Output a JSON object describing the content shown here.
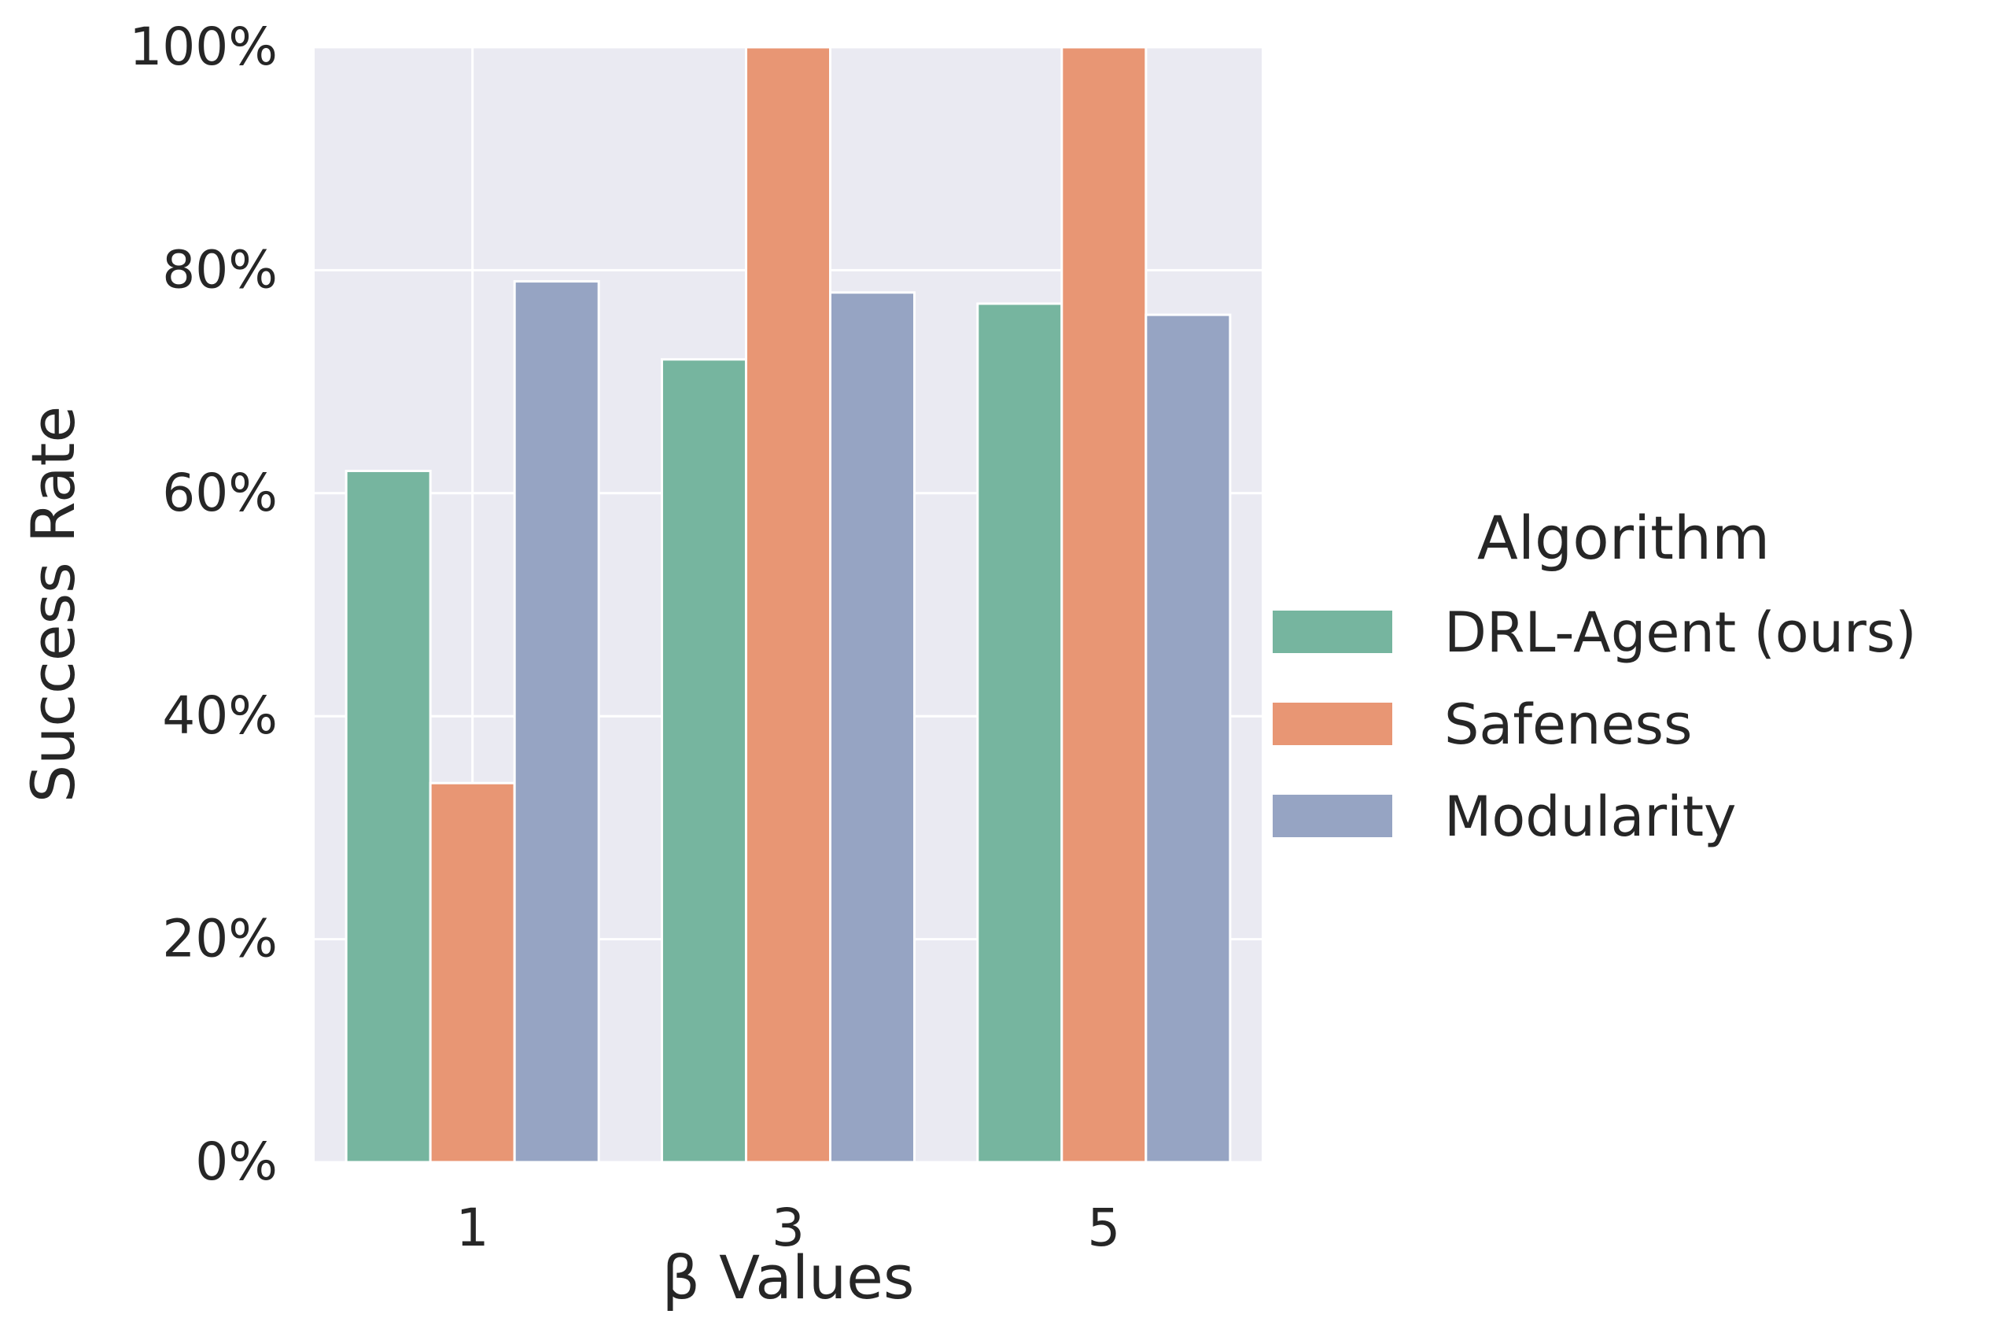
{
  "chart_data": {
    "type": "bar",
    "xlabel": "β Values",
    "ylabel": "Success Rate",
    "categories": [
      "1",
      "3",
      "5"
    ],
    "ylim": [
      0,
      100
    ],
    "yticks": [
      "0%",
      "20%",
      "40%",
      "60%",
      "80%",
      "100%"
    ],
    "ytick_values": [
      0,
      20,
      40,
      60,
      80,
      100
    ],
    "grid": true,
    "legend_position": "right",
    "legend_title": "Algorithm",
    "series": [
      {
        "name": "DRL-Agent (ours)",
        "color": "#76b59f",
        "values": [
          62,
          72,
          77
        ]
      },
      {
        "name": "Safeness",
        "color": "#e89674",
        "values": [
          34,
          100,
          100
        ]
      },
      {
        "name": "Modularity",
        "color": "#96a4c3",
        "values": [
          79,
          78,
          76
        ]
      }
    ]
  }
}
